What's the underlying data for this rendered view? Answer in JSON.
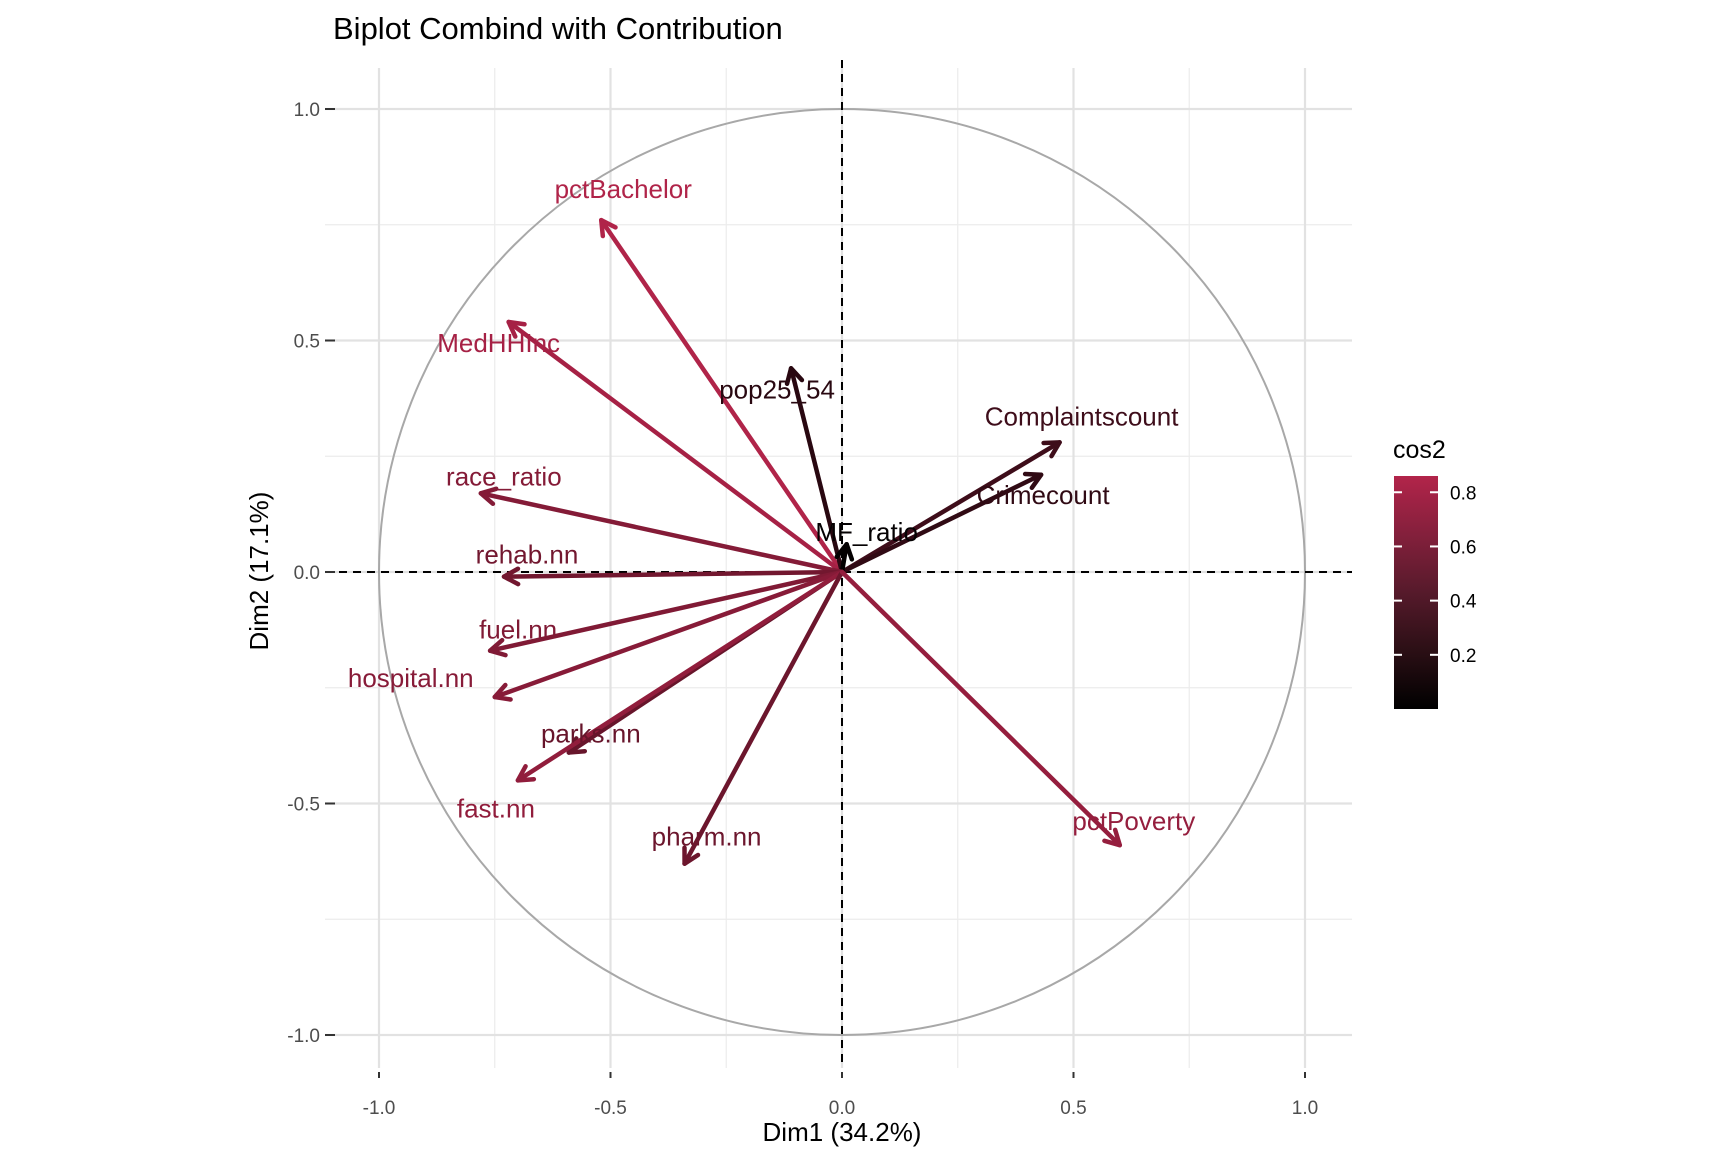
{
  "chart_data": {
    "type": "scatter",
    "subtype": "pca-variable-biplot",
    "title": "Biplot Combind with Contribution",
    "xlabel": "Dim1 (34.2%)",
    "ylabel": "Dim2 (17.1%)",
    "xlim": [
      -1.04,
      1.1
    ],
    "ylim": [
      -1.08,
      1.1
    ],
    "x_ticks": [
      -1.0,
      -0.5,
      0.0,
      0.5,
      1.0
    ],
    "x_tick_labels": [
      "-1.0",
      "-0.5",
      "0.0",
      "0.5",
      "1.0"
    ],
    "y_ticks": [
      1.0,
      0.5,
      0.0,
      -0.5,
      -1.0
    ],
    "y_tick_labels": [
      "1.0",
      "0.5",
      "0.0",
      "-0.5",
      "-1.0"
    ],
    "grid": true,
    "correlation_circle": true,
    "reference_lines": "dashed at x=0 and y=0",
    "color_variable": "cos2",
    "legend": {
      "title": "cos2",
      "placement": "right",
      "ticks": [
        0.2,
        0.4,
        0.6,
        0.8
      ],
      "tick_labels": [
        "0.2",
        "0.4",
        "0.6",
        "0.8"
      ],
      "range": [
        0.0,
        0.86
      ],
      "color_low": "#000000",
      "color_high": "#b2244a"
    },
    "variables": [
      {
        "name": "pctBachelor",
        "x": -0.52,
        "y": 0.76,
        "cos2": 0.85
      },
      {
        "name": "MedHHInc",
        "x": -0.72,
        "y": 0.54,
        "cos2": 0.8
      },
      {
        "name": "pop25_54",
        "x": -0.11,
        "y": 0.44,
        "cos2": 0.2
      },
      {
        "name": "Complaintscount",
        "x": 0.47,
        "y": 0.28,
        "cos2": 0.3
      },
      {
        "name": "Crimecount",
        "x": 0.43,
        "y": 0.21,
        "cos2": 0.23
      },
      {
        "name": "MF_ratio",
        "x": 0.01,
        "y": 0.06,
        "cos2": 0.02
      },
      {
        "name": "race_ratio",
        "x": -0.78,
        "y": 0.17,
        "cos2": 0.64
      },
      {
        "name": "rehab.nn",
        "x": -0.73,
        "y": -0.01,
        "cos2": 0.55
      },
      {
        "name": "fuel.nn",
        "x": -0.76,
        "y": -0.17,
        "cos2": 0.62
      },
      {
        "name": "hospital.nn",
        "x": -0.75,
        "y": -0.27,
        "cos2": 0.65
      },
      {
        "name": "parks.nn",
        "x": -0.59,
        "y": -0.39,
        "cos2": 0.5
      },
      {
        "name": "fast.nn",
        "x": -0.7,
        "y": -0.45,
        "cos2": 0.7
      },
      {
        "name": "pharm.nn",
        "x": -0.34,
        "y": -0.63,
        "cos2": 0.52
      },
      {
        "name": "pctPoverty",
        "x": 0.6,
        "y": -0.59,
        "cos2": 0.72
      }
    ]
  }
}
